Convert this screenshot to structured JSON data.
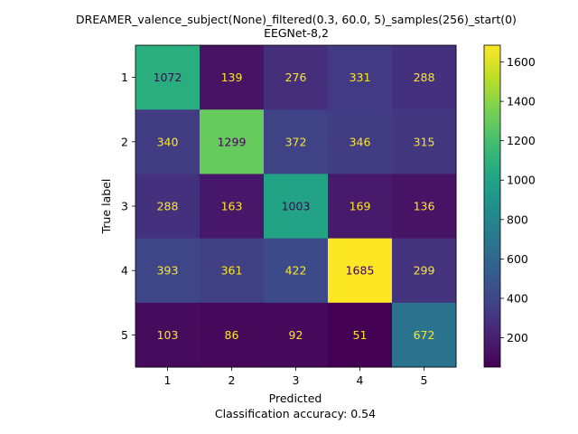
{
  "chart_data": {
    "type": "heatmap",
    "title": "DREAMER_valence_subject(None)_filtered(0.3, 60.0, 5)_samples(256)_start(0)",
    "subtitle": "EEGNet-8,2",
    "xlabel": "Predicted",
    "ylabel": "True label",
    "footer": "Classification accuracy: 0.54",
    "x_categories": [
      "1",
      "2",
      "3",
      "4",
      "5"
    ],
    "y_categories": [
      "1",
      "2",
      "3",
      "4",
      "5"
    ],
    "values": [
      [
        1072,
        139,
        276,
        331,
        288
      ],
      [
        340,
        1299,
        372,
        346,
        315
      ],
      [
        288,
        163,
        1003,
        169,
        136
      ],
      [
        393,
        361,
        422,
        1685,
        299
      ],
      [
        103,
        86,
        92,
        51,
        672
      ]
    ],
    "colormap": "viridis",
    "color_range": [
      51,
      1685
    ],
    "colorbar_ticks": [
      200,
      400,
      600,
      800,
      1000,
      1200,
      1400,
      1600
    ],
    "label_color_dark": "#440154",
    "label_color_light": "#fde725",
    "grid": false
  }
}
